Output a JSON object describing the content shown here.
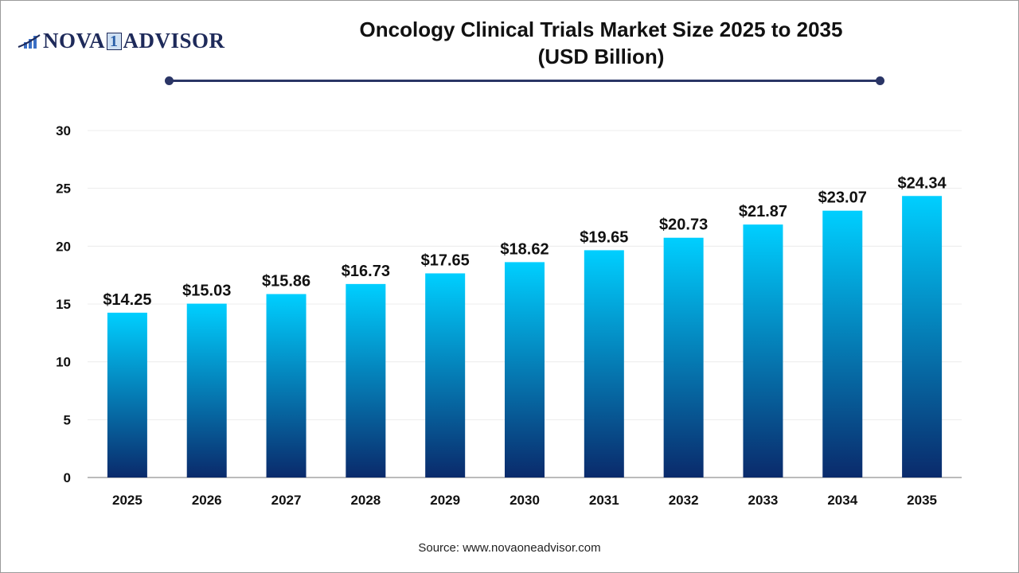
{
  "logo": {
    "text_left": "NOVA",
    "text_mid": "1",
    "text_right": "ADVISOR"
  },
  "header": {
    "title_line1": "Oncology Clinical Trials Market Size 2025 to 2035",
    "title_line2": "(USD Billion)"
  },
  "footer": {
    "source": "Source: www.novaoneadvisor.com"
  },
  "colors": {
    "bar_top": "#00cfff",
    "bar_bottom": "#0a2a6b",
    "rule": "#2a3566"
  },
  "chart_data": {
    "type": "bar",
    "title": "Oncology Clinical Trials Market Size 2025 to 2035 (USD Billion)",
    "categories": [
      "2025",
      "2026",
      "2027",
      "2028",
      "2029",
      "2030",
      "2031",
      "2032",
      "2033",
      "2034",
      "2035"
    ],
    "values": [
      14.25,
      15.03,
      15.86,
      16.73,
      17.65,
      18.62,
      19.65,
      20.73,
      21.87,
      23.07,
      24.34
    ],
    "data_labels": [
      "$14.25",
      "$15.03",
      "$15.86",
      "$16.73",
      "$17.65",
      "$18.62",
      "$19.65",
      "$20.73",
      "$21.87",
      "$23.07",
      "$24.34"
    ],
    "ylim": [
      0,
      30
    ],
    "yticks": [
      0,
      5,
      10,
      15,
      20,
      25,
      30
    ],
    "grid": true,
    "xlabel": "",
    "ylabel": ""
  }
}
